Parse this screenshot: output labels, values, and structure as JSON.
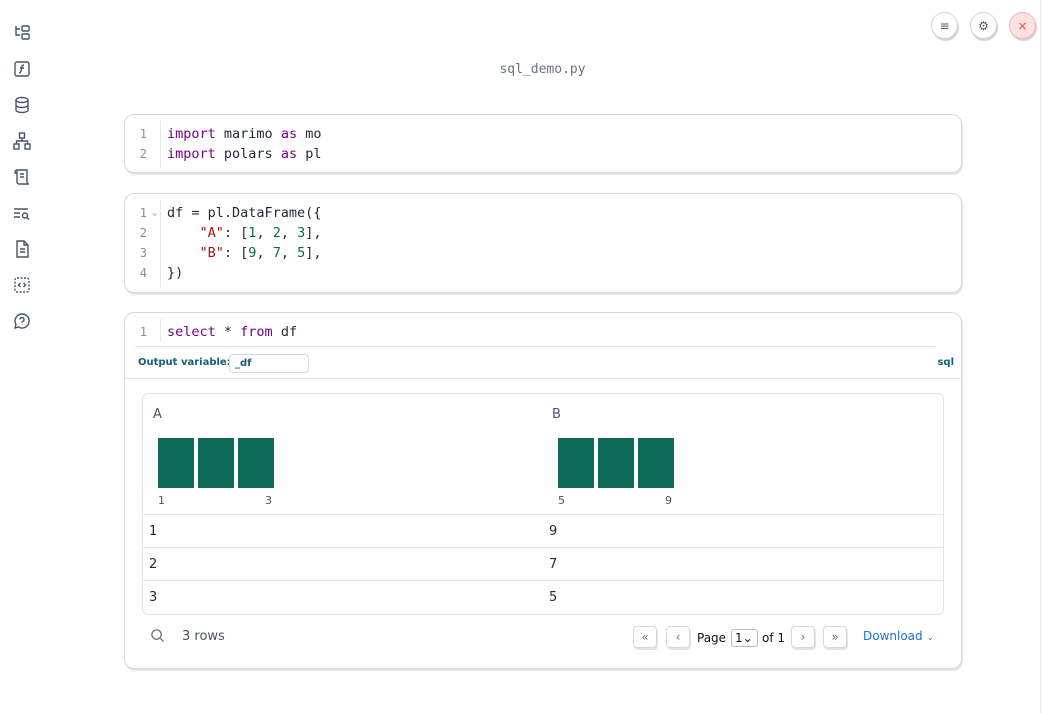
{
  "app": {
    "filename": "sql_demo.py"
  },
  "sidebar": {
    "items": [
      "file-explorer-icon",
      "functions-icon",
      "datasources-icon",
      "dependencies-icon",
      "outline-icon",
      "find-icon",
      "documentation-icon",
      "snippets-icon",
      "help-icon"
    ]
  },
  "toolbar": {
    "menu": "≡",
    "settings": "⚙",
    "close": "×"
  },
  "cells": [
    {
      "lines": [
        [
          "1",
          "import marimo as mo"
        ],
        [
          "2",
          "import polars as pl"
        ]
      ]
    },
    {
      "lines": [
        [
          "1",
          "df = pl.DataFrame({"
        ],
        [
          "2",
          "    \"A\": [1, 2, 3],"
        ],
        [
          "3",
          "    \"B\": [9, 7, 5],"
        ],
        [
          "4",
          "})"
        ]
      ]
    },
    {
      "lines": [
        [
          "1",
          "select * from df"
        ]
      ]
    }
  ],
  "sql": {
    "output_label": "Output variable:",
    "output_value": "_df",
    "mode": "sql"
  },
  "table": {
    "columns": [
      {
        "name": "A",
        "min": "1",
        "max": "3",
        "histogram": [
          1,
          1,
          1
        ]
      },
      {
        "name": "B",
        "min": "5",
        "max": "9",
        "histogram": [
          1,
          1,
          1
        ]
      }
    ],
    "rows": [
      [
        "1",
        "9"
      ],
      [
        "2",
        "7"
      ],
      [
        "3",
        "5"
      ]
    ],
    "row_count": "3 rows",
    "page_label": "Page",
    "page_value": "1",
    "page_of": "of 1",
    "download": "Download",
    "bar_color": "#0e6b5a"
  }
}
